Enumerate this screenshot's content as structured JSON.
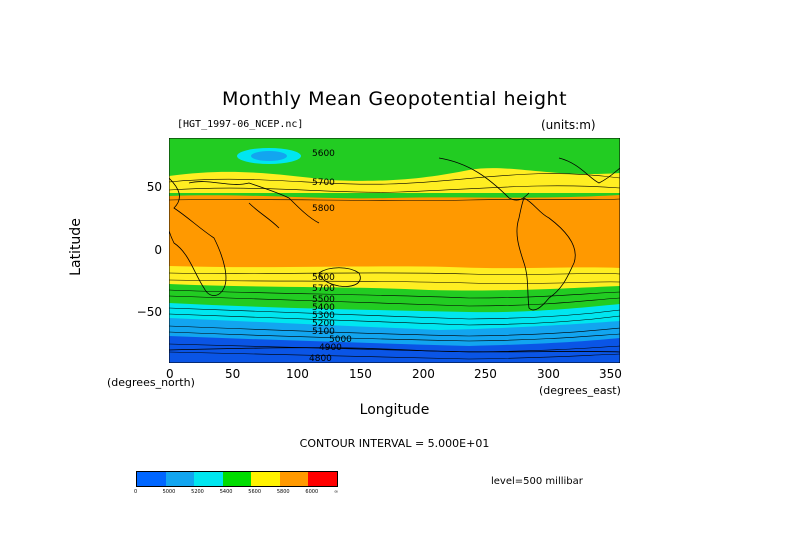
{
  "title": "Monthly Mean Geopotential height",
  "dataset_label": "[HGT_1997-06_NCEP.nc]",
  "units_label": "(units:m)",
  "y_axis": {
    "label": "Latitude",
    "ticks": [
      "50",
      "0",
      "−50"
    ],
    "unit_label": "(degrees_north)"
  },
  "x_axis": {
    "label": "Longitude",
    "ticks": [
      "0",
      "50",
      "100",
      "150",
      "200",
      "250",
      "300",
      "350"
    ],
    "unit_label": "(degrees_east)"
  },
  "contour_interval": "CONTOUR INTERVAL = 5.000E+01",
  "level": "level=500 millibar",
  "contour_labels": [
    "5600",
    "5700",
    "5800",
    "5600",
    "5700",
    "5500",
    "5400",
    "5300",
    "5200",
    "5100",
    "5000",
    "4900",
    "4800"
  ],
  "legend": {
    "colors": [
      "#0066ff",
      "#12a5f0",
      "#00e6f0",
      "#00dd00",
      "#fff200",
      "#ff9900",
      "#ff0000"
    ],
    "labels": [
      "0",
      "5000",
      "5200",
      "5400",
      "5600",
      "5800",
      "6000",
      "∞"
    ]
  },
  "map_colors": {
    "deep_blue": "#0a55e6",
    "blue": "#12a5f0",
    "cyan": "#00e6f0",
    "green": "#22cc22",
    "yellow": "#ffee22",
    "orange": "#ff9900"
  }
}
